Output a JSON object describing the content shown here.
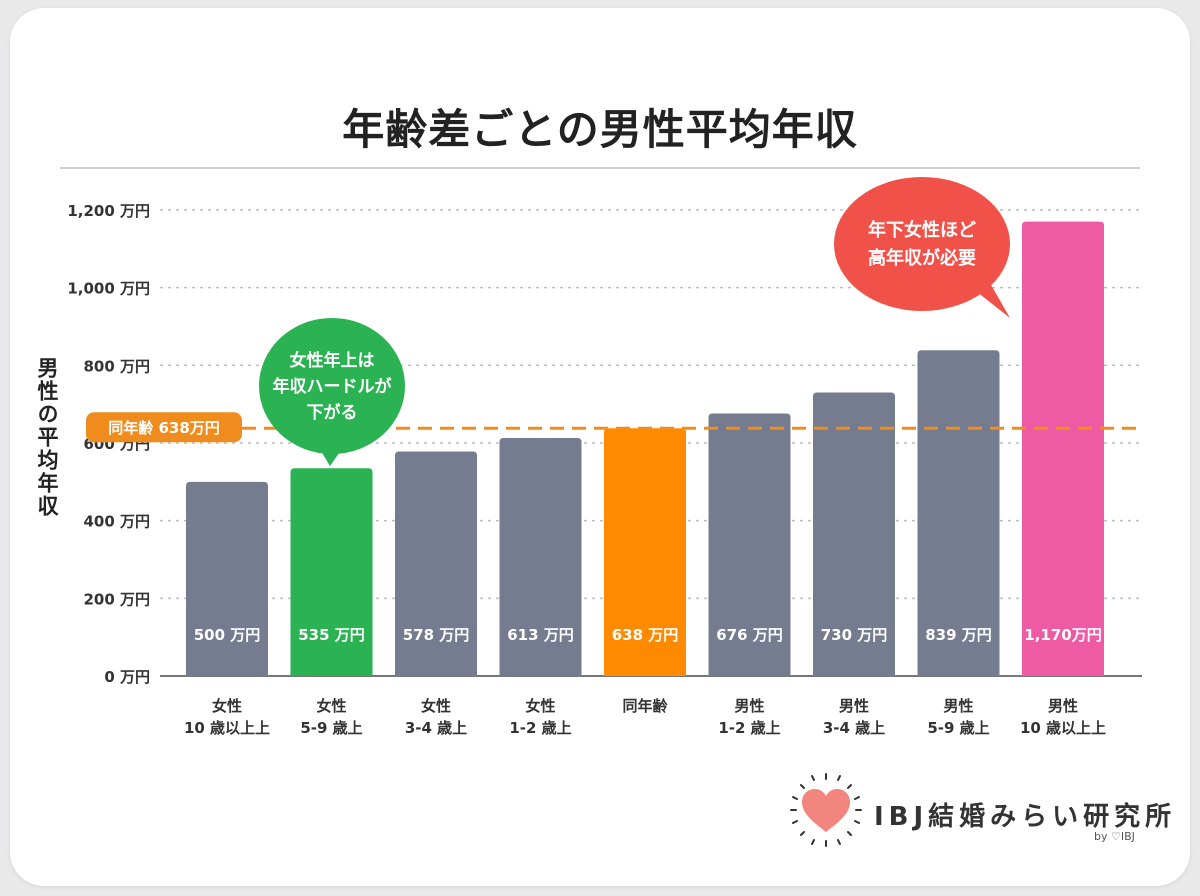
{
  "title": "年齢差ごとの男性平均年収",
  "colors": {
    "gray_bar": "#767c8f",
    "green": "#2bb253",
    "orange": "#ff8a00",
    "pink": "#ef5aa5",
    "red_bubble": "#f05249",
    "grid": "#bcbcc4",
    "ref_line": "#f08c1e"
  },
  "chart_data": {
    "type": "bar",
    "title": "年齢差ごとの男性平均年収",
    "ylabel": "男性の平均年収",
    "ylim": [
      0,
      1200
    ],
    "grid": true,
    "yticks": [
      0,
      200,
      400,
      600,
      800,
      1000,
      1200
    ],
    "ytick_labels": [
      "0 万円",
      "200 万円",
      "400 万円",
      "600 万円",
      "800 万円",
      "1,000 万円",
      "1,200 万円"
    ],
    "categories": [
      [
        "女性",
        "10 歳以上上"
      ],
      [
        "女性",
        "5-9 歳上"
      ],
      [
        "女性",
        "3-4 歳上"
      ],
      [
        "女性",
        "1-2 歳上"
      ],
      [
        "同年齢"
      ],
      [
        "男性",
        "1-2 歳上"
      ],
      [
        "男性",
        "3-4 歳上"
      ],
      [
        "男性",
        "5-9 歳上"
      ],
      [
        "男性",
        "10 歳以上上"
      ]
    ],
    "values": [
      500,
      535,
      578,
      613,
      638,
      676,
      730,
      839,
      1170
    ],
    "data_labels": [
      "500 万円",
      "535 万円",
      "578 万円",
      "613 万円",
      "638 万円",
      "676 万円",
      "730 万円",
      "839 万円",
      "1,170万円"
    ],
    "bar_colors": [
      "#767c8f",
      "#2bb253",
      "#767c8f",
      "#767c8f",
      "#ff8a00",
      "#767c8f",
      "#767c8f",
      "#767c8f",
      "#ef5aa5"
    ],
    "reference_line": {
      "value": 638,
      "label": "同年齢 638万円",
      "style": "dashed",
      "color": "#f08c1e"
    },
    "annotations": [
      {
        "lines": [
          "女性年上は",
          "年収ハードルが",
          "下がる"
        ],
        "color": "#2bb253",
        "target_index": 1
      },
      {
        "lines": [
          "年下女性ほど",
          "高年収が必要"
        ],
        "color": "#f05249",
        "target_index": 8
      }
    ]
  },
  "logo": {
    "text": "IBJ結婚みらい研究所",
    "byline": "by ♡IBJ",
    "icon": "heart-icon"
  }
}
